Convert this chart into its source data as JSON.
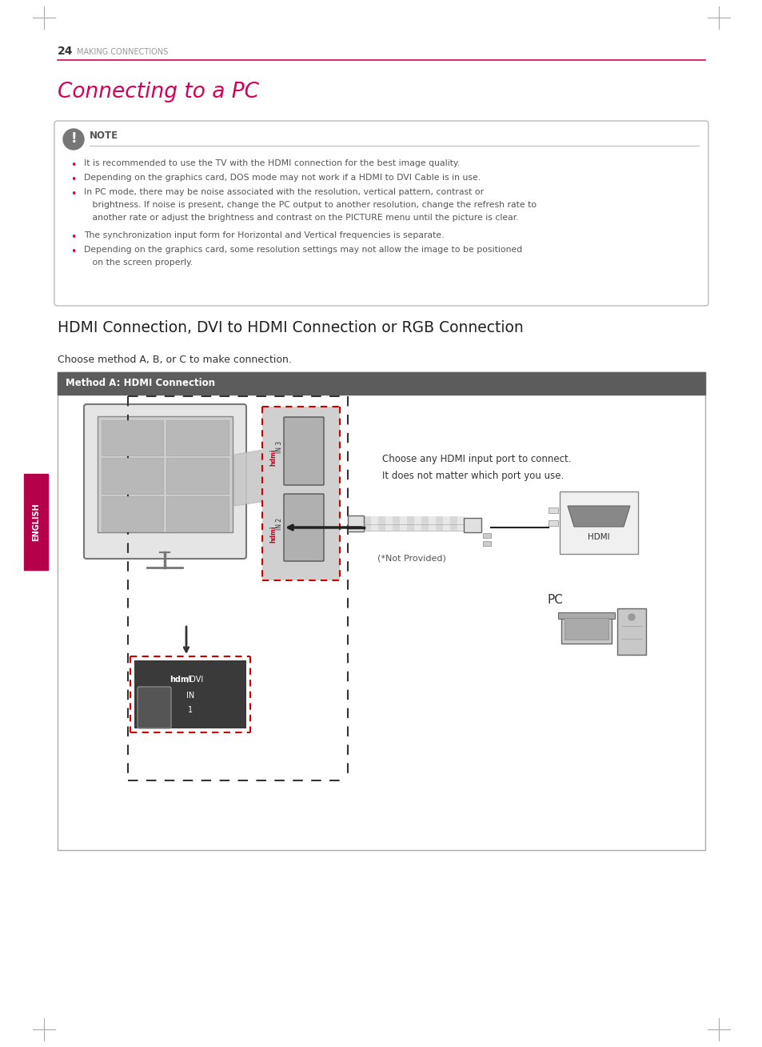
{
  "page_number": "24",
  "page_header": "MAKING CONNECTIONS",
  "title": "Connecting to a PC",
  "title_color": "#d6005a",
  "header_line_color": "#d6005a",
  "note_title": "NOTE",
  "note_bullets": [
    "It is recommended to use the TV with the HDMI connection for the best image quality.",
    "Depending on the graphics card, DOS mode may not work if a HDMI to DVI Cable is in use.",
    "In PC mode, there may be noise associated with the resolution, vertical pattern, contrast or",
    "The synchronization input form for Horizontal and Vertical frequencies is separate.",
    "Depending on the graphics card, some resolution settings may not allow the image to be positioned"
  ],
  "note_bullet3_line2": "   brightness. If noise is present, change the PC output to another resolution, change the refresh rate to",
  "note_bullet3_line3": "   another rate or adjust the brightness and contrast on the PICTURE menu until the picture is clear.",
  "note_bullet5_line2": "   on the screen properly.",
  "section_title": "HDMI Connection, DVI to HDMI Connection or RGB Connection",
  "choose_text": "Choose method A, B, or C to make connection.",
  "method_a_title": "Method A: HDMI Connection",
  "method_header_bg": "#5c5c5c",
  "method_header_text": "#ffffff",
  "hdmi_note1": "Choose any HDMI input port to connect.",
  "hdmi_note2": "It does not matter which port you use.",
  "not_provided": "(*Not Provided)",
  "pc_label": "PC",
  "english_tab_color": "#b5004a",
  "english_text": "ENGLISH",
  "background_color": "#ffffff",
  "text_color": "#444444",
  "note_box_border": "#bbbbbb",
  "bullet_color": "#d6005a",
  "corner_color": "#aaaaaa"
}
